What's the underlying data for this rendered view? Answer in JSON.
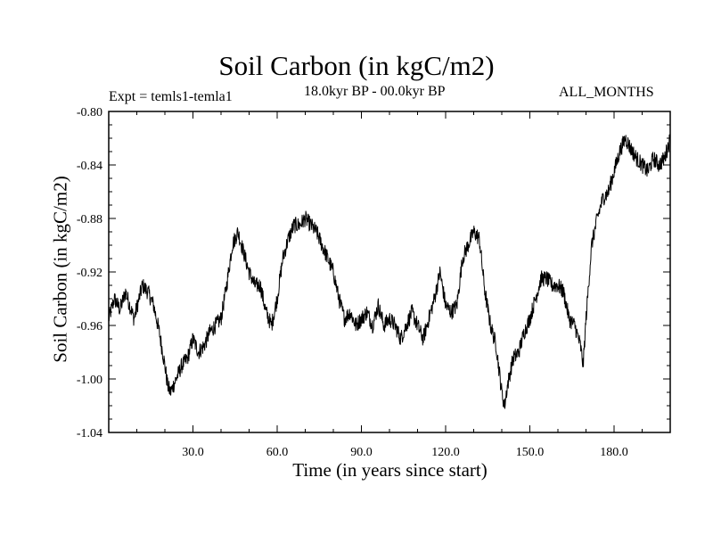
{
  "chart_data": {
    "type": "line",
    "title": "Soil Carbon (in kgC/m2)",
    "subtitle": "18.0kyr BP - 00.0kyr BP",
    "experiment": "Expt = temls1-temla1",
    "months": "ALL_MONTHS",
    "xlabel": "Time (in years since start)",
    "ylabel": "Soil Carbon (in kgC/m2)",
    "xlim": [
      0,
      200
    ],
    "ylim": [
      -1.04,
      -0.8
    ],
    "xticks": [
      {
        "value": 30,
        "label": "30.0"
      },
      {
        "value": 60,
        "label": "60.0"
      },
      {
        "value": 90,
        "label": "90.0"
      },
      {
        "value": 120,
        "label": "120.0"
      },
      {
        "value": 150,
        "label": "150.0"
      },
      {
        "value": 180,
        "label": "180.0"
      }
    ],
    "yticks": [
      {
        "value": -0.8,
        "label": "-0.80"
      },
      {
        "value": -0.84,
        "label": "-0.84"
      },
      {
        "value": -0.88,
        "label": "-0.88"
      },
      {
        "value": -0.92,
        "label": "-0.92"
      },
      {
        "value": -0.96,
        "label": "-0.96"
      },
      {
        "value": -1.0,
        "label": "-1.00"
      },
      {
        "value": -1.04,
        "label": "-1.04"
      }
    ],
    "noise_amplitude": 0.006,
    "series": [
      {
        "name": "soil carbon",
        "color": "#000000",
        "x": [
          0,
          2,
          4,
          6,
          9,
          12,
          14,
          16,
          18,
          20,
          21,
          22,
          24,
          26,
          28,
          30,
          32,
          34,
          36,
          38,
          40,
          42,
          44,
          46,
          48,
          50,
          52,
          54,
          56,
          58,
          60,
          62,
          64,
          66,
          68,
          70,
          72,
          74,
          76,
          78,
          80,
          82,
          84,
          86,
          88,
          90,
          92,
          94,
          96,
          98,
          100,
          102,
          104,
          106,
          108,
          110,
          112,
          114,
          116,
          118,
          120,
          122,
          124,
          126,
          128,
          130,
          132,
          134,
          136,
          138,
          140,
          141,
          142,
          144,
          146,
          148,
          150,
          152,
          154,
          156,
          158,
          160,
          162,
          164,
          166,
          168,
          169,
          170,
          172,
          174,
          176,
          178,
          180,
          182,
          184,
          186,
          188,
          190,
          192,
          194,
          196,
          198,
          200
        ],
        "y": [
          -0.955,
          -0.94,
          -0.948,
          -0.935,
          -0.955,
          -0.93,
          -0.935,
          -0.945,
          -0.965,
          -0.99,
          -1.005,
          -1.01,
          -1.0,
          -0.99,
          -0.985,
          -0.97,
          -0.98,
          -0.975,
          -0.965,
          -0.96,
          -0.955,
          -0.93,
          -0.9,
          -0.89,
          -0.905,
          -0.92,
          -0.93,
          -0.93,
          -0.95,
          -0.96,
          -0.94,
          -0.91,
          -0.895,
          -0.885,
          -0.885,
          -0.88,
          -0.885,
          -0.89,
          -0.9,
          -0.91,
          -0.92,
          -0.94,
          -0.955,
          -0.95,
          -0.96,
          -0.955,
          -0.95,
          -0.96,
          -0.945,
          -0.96,
          -0.955,
          -0.96,
          -0.97,
          -0.96,
          -0.95,
          -0.96,
          -0.97,
          -0.955,
          -0.94,
          -0.92,
          -0.945,
          -0.95,
          -0.945,
          -0.91,
          -0.9,
          -0.89,
          -0.895,
          -0.935,
          -0.96,
          -0.975,
          -1.01,
          -1.02,
          -1.005,
          -0.985,
          -0.98,
          -0.965,
          -0.955,
          -0.94,
          -0.925,
          -0.925,
          -0.93,
          -0.93,
          -0.935,
          -0.955,
          -0.96,
          -0.975,
          -0.99,
          -0.955,
          -0.9,
          -0.88,
          -0.865,
          -0.86,
          -0.845,
          -0.83,
          -0.82,
          -0.828,
          -0.835,
          -0.84,
          -0.845,
          -0.835,
          -0.84,
          -0.835,
          -0.82
        ]
      }
    ]
  }
}
